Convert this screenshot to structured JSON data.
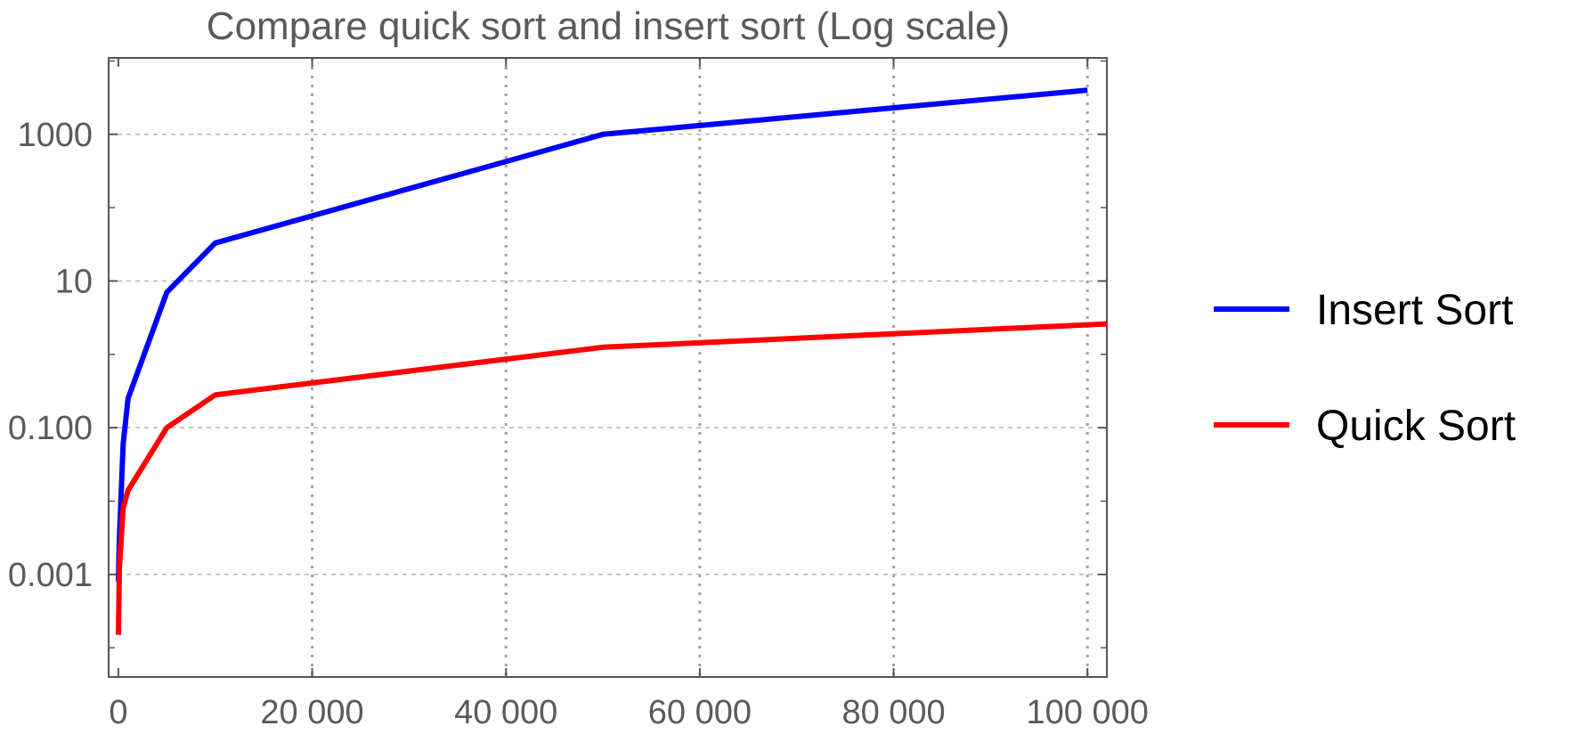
{
  "chart_data": {
    "type": "line",
    "title": "Compare quick sort and insert sort (Log scale)",
    "xlabel": "",
    "ylabel": "",
    "y_scale": "log",
    "xlim": [
      -1000,
      102000
    ],
    "ylim": [
      4e-05,
      11000
    ],
    "grid": {
      "x": true,
      "y": true
    },
    "legend_position": "right",
    "x_ticks": [
      {
        "value": 0,
        "label": "0"
      },
      {
        "value": 20000,
        "label": "20 000"
      },
      {
        "value": 40000,
        "label": "40 000"
      },
      {
        "value": 60000,
        "label": "60 000"
      },
      {
        "value": 80000,
        "label": "80 000"
      },
      {
        "value": 100000,
        "label": "100 000"
      }
    ],
    "y_ticks": [
      {
        "value": 0.001,
        "label": "0.001"
      },
      {
        "value": 0.1,
        "label": "0.100"
      },
      {
        "value": 10,
        "label": "10"
      },
      {
        "value": 1000,
        "label": "1000"
      }
    ],
    "y_minor_ticks": [
      0.0001,
      0.01,
      1,
      100,
      10000
    ],
    "series": [
      {
        "name": "Insert Sort",
        "color": "#0000ff",
        "x": [
          10,
          100,
          500,
          1000,
          5000,
          10000,
          50000,
          100000
        ],
        "y": [
          0.0008,
          0.003,
          0.06,
          0.25,
          7,
          33,
          1000,
          4000
        ]
      },
      {
        "name": "Quick Sort",
        "color": "#ff0000",
        "x": [
          10,
          100,
          500,
          1000,
          5000,
          10000,
          50000,
          102000
        ],
        "y": [
          0.00015,
          0.0012,
          0.008,
          0.014,
          0.1,
          0.28,
          1.25,
          2.6
        ]
      }
    ]
  }
}
